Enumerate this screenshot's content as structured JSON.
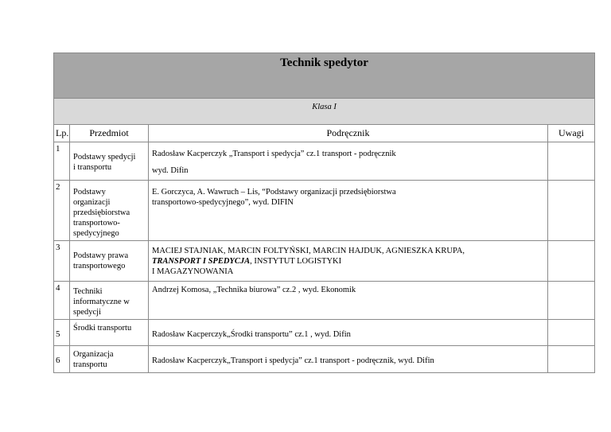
{
  "title": "Technik spedytor",
  "class_label": "Klasa I",
  "headers": {
    "lp": "Lp.",
    "subject": "Przedmiot",
    "textbook": "Podręcznik",
    "notes": "Uwagi"
  },
  "rows": [
    {
      "lp": "1",
      "subject": "Podstawy spedycji\ni transportu",
      "textbook": "Radosław Kacperczyk „Transport i spedycja” cz.1 transport - podręcznik",
      "textbook_line2": "wyd.  Difin",
      "notes": ""
    },
    {
      "lp": "2",
      "subject": "Podstawy organizacji przedsiębiorstwa transportowo-spedycyjnego",
      "textbook": "E. Gorczyca, A. Wawruch – Lis, “Podstawy organizacji przedsiębiorstwa transportowo-spedycyjnego”, wyd. DIFIN",
      "notes": ""
    },
    {
      "lp": "3",
      "subject": "Podstawy prawa transportowego",
      "textbook_before": "MACIEJ STAJNIAK, MARCIN FOLTYŃSKI, MARCIN HAJDUK, AGNIESZKA KRUPA, ",
      "textbook_title": "TRANSPORT I SPEDYCJA",
      "textbook_after": ", INSTYTUT LOGISTYKI\nI MAGAZYNOWANIA",
      "notes": ""
    },
    {
      "lp": "4",
      "subject": "Techniki informatyczne w spedycji",
      "textbook": "Andrzej Komosa, „Technika biurowa” cz.2 , wyd.  Ekonomik",
      "notes": ""
    },
    {
      "lp": "5",
      "subject": "Środki transportu",
      "textbook": "Radosław Kacperczyk„Środki transportu” cz.1 ,  wyd.  Difin",
      "notes": ""
    },
    {
      "lp": "6",
      "subject": "Organizacja transportu",
      "textbook": "Radosław Kacperczyk„Transport i spedycja” cz.1 transport - podręcznik, wyd. Difin",
      "notes": ""
    }
  ]
}
